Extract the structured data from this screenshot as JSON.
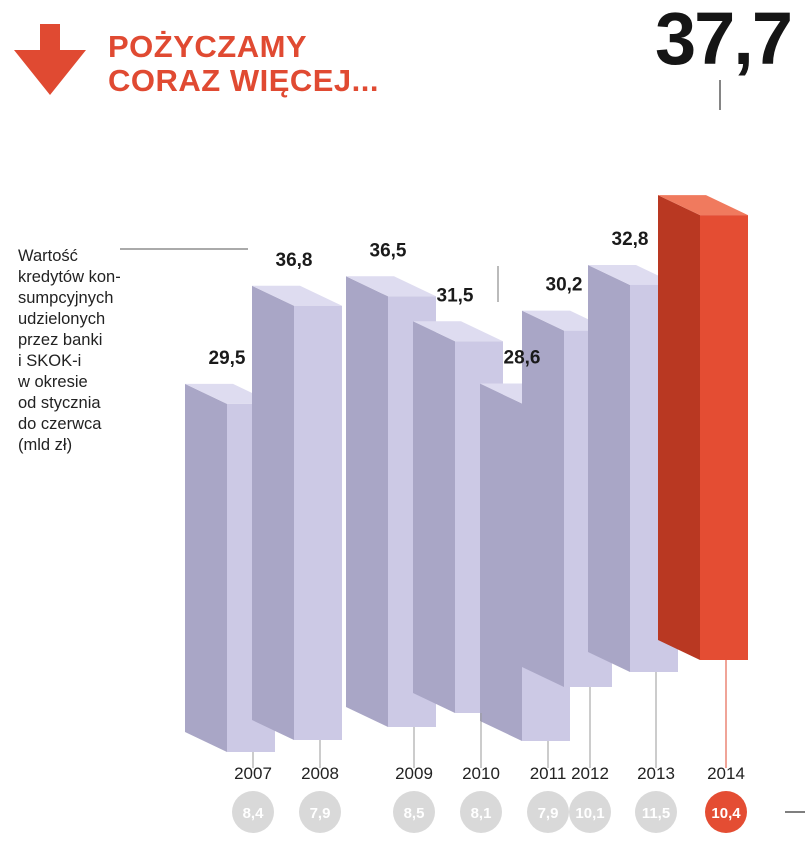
{
  "title": {
    "line1": "POŻYCZAMY",
    "line2": "CORAZ WIĘCEJ..."
  },
  "icon": "arrow-down-icon",
  "highlight_value": "37,7",
  "description": "Wartość\nkredytów kon-\nsumpcyjnych\nudzielonych\nprzez banki\ni SKOK-i\nw okresie\nod stycznia\ndo czerwca\n(mld zł)",
  "colors": {
    "accent": "#e04a32",
    "bar_front": "#ccc9e5",
    "bar_side": "#a9a6c6",
    "bar_top": "#dedcf0",
    "highlight_front": "#e44d33",
    "highlight_side": "#b93822",
    "highlight_top": "#f07a5e",
    "circle_grey": "#d9d9d9"
  },
  "chart_data": {
    "type": "bar",
    "categories": [
      "2007",
      "2008",
      "2009",
      "2010",
      "2011",
      "2012",
      "2013",
      "2014"
    ],
    "values": [
      29.5,
      36.8,
      36.5,
      31.5,
      28.6,
      30.2,
      32.8,
      37.7
    ],
    "value_labels": [
      "29,5",
      "36,8",
      "36,5",
      "31,5",
      "28,6",
      "30,2",
      "32,8",
      ""
    ],
    "secondary_values": [
      "8,4",
      "7,9",
      "8,5",
      "8,1",
      "7,9",
      "10,1",
      "11,5",
      "10,4"
    ],
    "highlight_index": 7,
    "title": "POŻYCZAMY CORAZ WIĘCEJ...",
    "xlabel": "",
    "ylabel": "",
    "grid": false,
    "legend": "none"
  }
}
